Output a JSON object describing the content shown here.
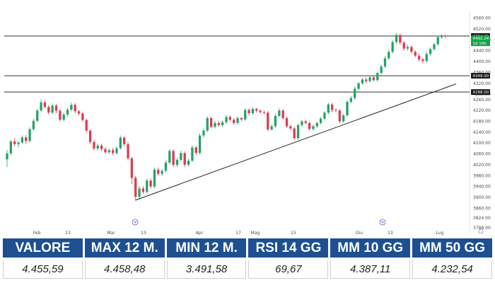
{
  "chart_data": {
    "type": "candlestick",
    "price_axis_ticks": [
      "4560.00",
      "4520.00",
      "4480.00",
      "4440.00",
      "4400.00",
      "4360.00",
      "4320.00",
      "4280.00",
      "4260.00",
      "4220.00",
      "4180.00",
      "4140.00",
      "4100.00",
      "4060.00",
      "4020.00",
      "3980.00",
      "3940.00",
      "3900.00",
      "3860.00",
      "3824.00",
      "3788.00"
    ],
    "time_axis_labels": [
      "Feb",
      "13",
      "Mar",
      "13",
      "Apr",
      "17",
      "Mag",
      "15",
      "Giu",
      "13",
      "Lug"
    ],
    "ylim": [
      3788,
      4580
    ],
    "horizontal_levels": [
      {
        "value": 4494.25,
        "label": "4494.25"
      },
      {
        "value": 4348.0,
        "label": "4348.00"
      },
      {
        "value": 4288.0,
        "label": "4288.00"
      }
    ],
    "last_price_box": [
      "4492.24",
      "1d 19h"
    ],
    "trendline": {
      "from_value": 3890,
      "to_value": 4318
    },
    "colors": {
      "up": "#26a269",
      "down": "#e0394f",
      "level_line": "#111111",
      "trendline": "#222222",
      "header_bg": "#1d4f91",
      "tag_bg": "#1a1a1a",
      "price_tag_bg": "#16a34a"
    },
    "candles": [
      [
        4040,
        4062,
        4012,
        4075
      ],
      [
        4062,
        4106,
        4055,
        4112
      ],
      [
        4106,
        4096,
        4088,
        4118
      ],
      [
        4096,
        4102,
        4084,
        4108
      ],
      [
        4102,
        4121,
        4098,
        4128
      ],
      [
        4121,
        4108,
        4098,
        4130
      ],
      [
        4108,
        4151,
        4102,
        4158
      ],
      [
        4151,
        4182,
        4146,
        4190
      ],
      [
        4182,
        4220,
        4176,
        4226
      ],
      [
        4220,
        4250,
        4214,
        4262
      ],
      [
        4250,
        4233,
        4226,
        4258
      ],
      [
        4233,
        4212,
        4205,
        4240
      ],
      [
        4212,
        4238,
        4206,
        4246
      ],
      [
        4238,
        4219,
        4210,
        4244
      ],
      [
        4219,
        4186,
        4180,
        4226
      ],
      [
        4186,
        4205,
        4180,
        4212
      ],
      [
        4205,
        4223,
        4198,
        4230
      ],
      [
        4223,
        4241,
        4216,
        4250
      ],
      [
        4241,
        4217,
        4210,
        4248
      ],
      [
        4217,
        4209,
        4202,
        4222
      ],
      [
        4209,
        4185,
        4178,
        4215
      ],
      [
        4185,
        4146,
        4138,
        4190
      ],
      [
        4146,
        4104,
        4096,
        4150
      ],
      [
        4104,
        4080,
        4072,
        4112
      ],
      [
        4080,
        4091,
        4072,
        4098
      ],
      [
        4091,
        4078,
        4070,
        4098
      ],
      [
        4078,
        4066,
        4060,
        4086
      ],
      [
        4066,
        4074,
        4060,
        4080
      ],
      [
        4074,
        4063,
        4055,
        4082
      ],
      [
        4063,
        4081,
        4058,
        4088
      ],
      [
        4081,
        4120,
        4076,
        4128
      ],
      [
        4120,
        4096,
        4088,
        4126
      ],
      [
        4096,
        4044,
        4036,
        4104
      ],
      [
        4044,
        3972,
        3950,
        4050
      ],
      [
        3972,
        3902,
        3888,
        3980
      ],
      [
        3902,
        3933,
        3896,
        3942
      ],
      [
        3933,
        3920,
        3912,
        3942
      ],
      [
        3920,
        3962,
        3914,
        3970
      ],
      [
        3962,
        3940,
        3932,
        3970
      ],
      [
        3940,
        4002,
        3934,
        4010
      ],
      [
        4002,
        3987,
        3980,
        4010
      ],
      [
        3987,
        3998,
        3978,
        4004
      ],
      [
        3998,
        4028,
        3992,
        4036
      ],
      [
        4028,
        4071,
        4022,
        4078
      ],
      [
        4071,
        4020,
        4012,
        4078
      ],
      [
        4020,
        4038,
        4012,
        4046
      ],
      [
        4038,
        4063,
        4032,
        4072
      ],
      [
        4063,
        4020,
        4012,
        4070
      ],
      [
        4020,
        4035,
        4014,
        4042
      ],
      [
        4035,
        4084,
        4030,
        4092
      ],
      [
        4084,
        4064,
        4056,
        4090
      ],
      [
        4064,
        4128,
        4058,
        4136
      ],
      [
        4128,
        4146,
        4120,
        4154
      ],
      [
        4146,
        4192,
        4140,
        4198
      ],
      [
        4192,
        4160,
        4154,
        4198
      ],
      [
        4160,
        4174,
        4154,
        4182
      ],
      [
        4174,
        4166,
        4160,
        4182
      ],
      [
        4166,
        4177,
        4160,
        4184
      ],
      [
        4177,
        4196,
        4170,
        4204
      ],
      [
        4196,
        4186,
        4180,
        4202
      ],
      [
        4186,
        4174,
        4168,
        4192
      ],
      [
        4174,
        4192,
        4168,
        4198
      ],
      [
        4192,
        4187,
        4180,
        4196
      ],
      [
        4187,
        4222,
        4182,
        4228
      ],
      [
        4222,
        4210,
        4202,
        4228
      ],
      [
        4210,
        4226,
        4204,
        4232
      ],
      [
        4226,
        4219,
        4212,
        4230
      ],
      [
        4219,
        4214,
        4208,
        4224
      ],
      [
        4214,
        4212,
        4206,
        4220
      ],
      [
        4212,
        4150,
        4144,
        4218
      ],
      [
        4150,
        4162,
        4146,
        4168
      ],
      [
        4162,
        4200,
        4156,
        4208
      ],
      [
        4200,
        4220,
        4194,
        4228
      ],
      [
        4220,
        4192,
        4186,
        4226
      ],
      [
        4192,
        4162,
        4156,
        4198
      ],
      [
        4162,
        4154,
        4148,
        4168
      ],
      [
        4154,
        4118,
        4112,
        4160
      ],
      [
        4118,
        4166,
        4112,
        4172
      ],
      [
        4166,
        4180,
        4160,
        4186
      ],
      [
        4180,
        4174,
        4168,
        4186
      ],
      [
        4174,
        4152,
        4146,
        4180
      ],
      [
        4152,
        4162,
        4146,
        4168
      ],
      [
        4162,
        4174,
        4156,
        4180
      ],
      [
        4174,
        4190,
        4168,
        4196
      ],
      [
        4190,
        4212,
        4184,
        4218
      ],
      [
        4212,
        4242,
        4206,
        4248
      ],
      [
        4242,
        4222,
        4214,
        4248
      ],
      [
        4222,
        4220,
        4214,
        4228
      ],
      [
        4220,
        4180,
        4174,
        4226
      ],
      [
        4180,
        4202,
        4174,
        4208
      ],
      [
        4202,
        4252,
        4196,
        4258
      ],
      [
        4252,
        4266,
        4246,
        4274
      ],
      [
        4266,
        4300,
        4260,
        4308
      ],
      [
        4300,
        4320,
        4292,
        4326
      ],
      [
        4320,
        4334,
        4314,
        4340
      ],
      [
        4334,
        4328,
        4320,
        4342
      ],
      [
        4328,
        4342,
        4322,
        4348
      ],
      [
        4342,
        4332,
        4326,
        4348
      ],
      [
        4332,
        4358,
        4326,
        4364
      ],
      [
        4358,
        4382,
        4352,
        4390
      ],
      [
        4382,
        4412,
        4376,
        4420
      ],
      [
        4412,
        4436,
        4406,
        4444
      ],
      [
        4436,
        4472,
        4430,
        4480
      ],
      [
        4472,
        4498,
        4464,
        4506
      ],
      [
        4498,
        4470,
        4462,
        4504
      ],
      [
        4470,
        4448,
        4440,
        4476
      ],
      [
        4448,
        4454,
        4440,
        4462
      ],
      [
        4454,
        4436,
        4428,
        4460
      ],
      [
        4436,
        4422,
        4416,
        4442
      ],
      [
        4422,
        4408,
        4400,
        4430
      ],
      [
        4408,
        4402,
        4394,
        4414
      ],
      [
        4402,
        4428,
        4396,
        4436
      ],
      [
        4428,
        4446,
        4422,
        4452
      ],
      [
        4446,
        4464,
        4440,
        4470
      ],
      [
        4464,
        4490,
        4458,
        4496
      ],
      [
        4490,
        4496,
        4484,
        4502
      ],
      [
        4496,
        4493,
        4486,
        4500
      ]
    ]
  },
  "stats": {
    "headers": [
      "VALORE",
      "MAX 12 M.",
      "MIN 12 M.",
      "RSI 14 GG",
      "MM 10 GG",
      "MM 50 GG"
    ],
    "values": [
      "4.455,59",
      "4.458,48",
      "3.491,58",
      "69,67",
      "4.387,11",
      "4.232,54"
    ]
  }
}
